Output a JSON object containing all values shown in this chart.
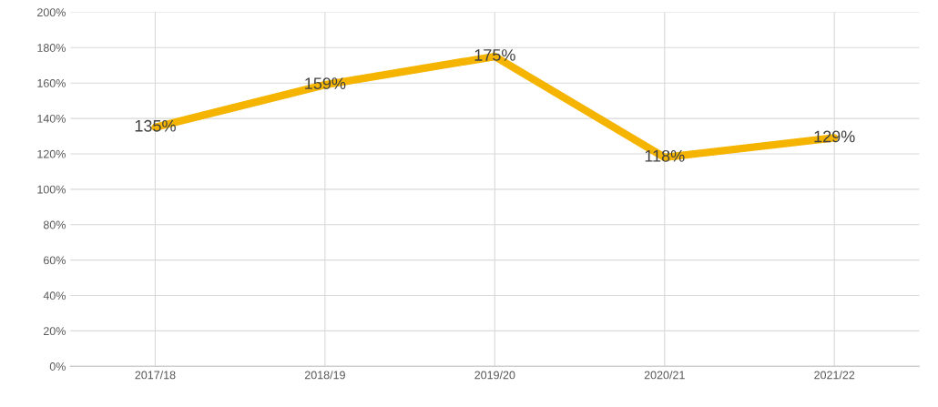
{
  "chart_data": {
    "type": "line",
    "categories": [
      "2017/18",
      "2018/19",
      "2019/20",
      "2020/21",
      "2021/22"
    ],
    "series": [
      {
        "color": "#f4b400",
        "values": [
          135,
          159,
          175,
          118,
          129
        ],
        "value_labels": [
          "135%",
          "159%",
          "175%",
          "118%",
          "129%"
        ]
      }
    ],
    "ylim": [
      0,
      200
    ],
    "yticks": [
      {
        "value": 0,
        "label": "0%"
      },
      {
        "value": 20,
        "label": "20%"
      },
      {
        "value": 40,
        "label": "40%"
      },
      {
        "value": 60,
        "label": "60%"
      },
      {
        "value": 80,
        "label": "80%"
      },
      {
        "value": 100,
        "label": "100%"
      },
      {
        "value": 120,
        "label": "120%"
      },
      {
        "value": 140,
        "label": "140%"
      },
      {
        "value": 160,
        "label": "160%"
      },
      {
        "value": 180,
        "label": "180%"
      },
      {
        "value": 200,
        "label": "200%"
      }
    ],
    "grid": true,
    "marker": "none",
    "line_style": "solid",
    "legend": false
  }
}
